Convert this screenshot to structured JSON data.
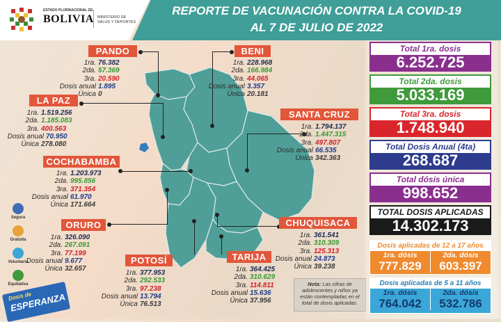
{
  "header": {
    "title_line1": "REPORTE DE VACUNACIÓN CONTRA LA COVID-19",
    "title_line2": "AL 7 DE JULIO DE 2022",
    "gov_small": "ESTADO PLURINACIONAL DE",
    "gov_big": "BOLIVIA",
    "ministry_line1": "MINISTERIO DE",
    "ministry_line2": "SALUD Y DEPORTES"
  },
  "labels": {
    "d1": "1ra.",
    "d2": "2da.",
    "d3": "3ra.",
    "anual": "Dosis anual",
    "unica": "Única"
  },
  "regions": {
    "pando": {
      "name": "PANDO",
      "d1": "76.382",
      "d2": "57.369",
      "d3": "20.590",
      "anual": "1.895",
      "unica": "0"
    },
    "beni": {
      "name": "BENI",
      "d1": "228.968",
      "d2": "166.984",
      "d3": "44.065",
      "anual": "3.357",
      "unica": "20.181"
    },
    "lapaz": {
      "name": "LA PAZ",
      "d1": "1.519.256",
      "d2": "1.185.083",
      "d3": "400.563",
      "anual": "70.950",
      "unica": "278.080"
    },
    "santacruz": {
      "name": "SANTA CRUZ",
      "d1": "1.794.137",
      "d2": "1.447.315",
      "d3": "497.807",
      "anual": "66.535",
      "unica": "342.363"
    },
    "cochabamba": {
      "name": "COCHABAMBA",
      "d1": "1.203.973",
      "d2": "995.856",
      "d3": "371.354",
      "anual": "61.970",
      "unica": "171.664"
    },
    "oruro": {
      "name": "ORURO",
      "d1": "326.090",
      "d2": "267.091",
      "d3": "77.199",
      "anual": "9.677",
      "unica": "32.657"
    },
    "chuquisaca": {
      "name": "CHUQUISACA",
      "d1": "361.541",
      "d2": "310.309",
      "d3": "125.313",
      "anual": "24.873",
      "unica": "39.238"
    },
    "potosi": {
      "name": "POTOSÍ",
      "d1": "377.953",
      "d2": "292.533",
      "d3": "97.238",
      "anual": "13.794",
      "unica": "76.513"
    },
    "tarija": {
      "name": "TARIJA",
      "d1": "364.425",
      "d2": "310.629",
      "d3": "114.811",
      "anual": "15.636",
      "unica": "37.956"
    }
  },
  "totals": [
    {
      "label": "Total 1ra. dosis",
      "value": "6.252.725",
      "color": "#8b2f8f",
      "label_color": "#8b2f8f"
    },
    {
      "label": "Total 2da. dosis",
      "value": "5.033.169",
      "color": "#3f9a3b",
      "label_color": "#3f9a3b"
    },
    {
      "label": "Total 3ra. dosis",
      "value": "1.748.940",
      "color": "#d9262c",
      "label_color": "#d9262c"
    },
    {
      "label": "Total Dosis Anual (4ta)",
      "value": "268.687",
      "color": "#2d3c8c",
      "label_color": "#2d3c8c"
    },
    {
      "label": "Total dósis única",
      "value": "998.652",
      "color": "#8b2f8f",
      "label_color": "#8b2f8f"
    },
    {
      "label": "TOTAL DOSIS APLICADAS",
      "value": "14.302.173",
      "color": "#1a1a1a",
      "label_color": "#1a1a1a"
    }
  ],
  "age_12_17": {
    "title": "Dosis aplicadas de 12 a 17 años",
    "l1": "1ra. dósis",
    "v1": "777.829",
    "l2": "2da. dósis",
    "v2": "603.397",
    "color": "#ef8a2e"
  },
  "age_5_11": {
    "title": "Dosis aplicadas de 5 a 11 años",
    "l1": "1ra. dósis",
    "v1": "764.042",
    "l2": "2da. dósis",
    "v2": "532.786",
    "color": "#3aa7d8"
  },
  "note": {
    "bold": "Nota:",
    "text": "Las cifras de adolescentes y niños ya están contempladas en el total de dosis aplicadas."
  },
  "side_icons": [
    "Segura",
    "Gratuita",
    "Voluntaria",
    "Equitativa"
  ],
  "campaign": {
    "line1": "Dosis de",
    "line2": "ESPERANZA"
  },
  "colors": {
    "teal": "#3f9e97",
    "tag": "#e2563a",
    "map": "#4f9f98"
  }
}
